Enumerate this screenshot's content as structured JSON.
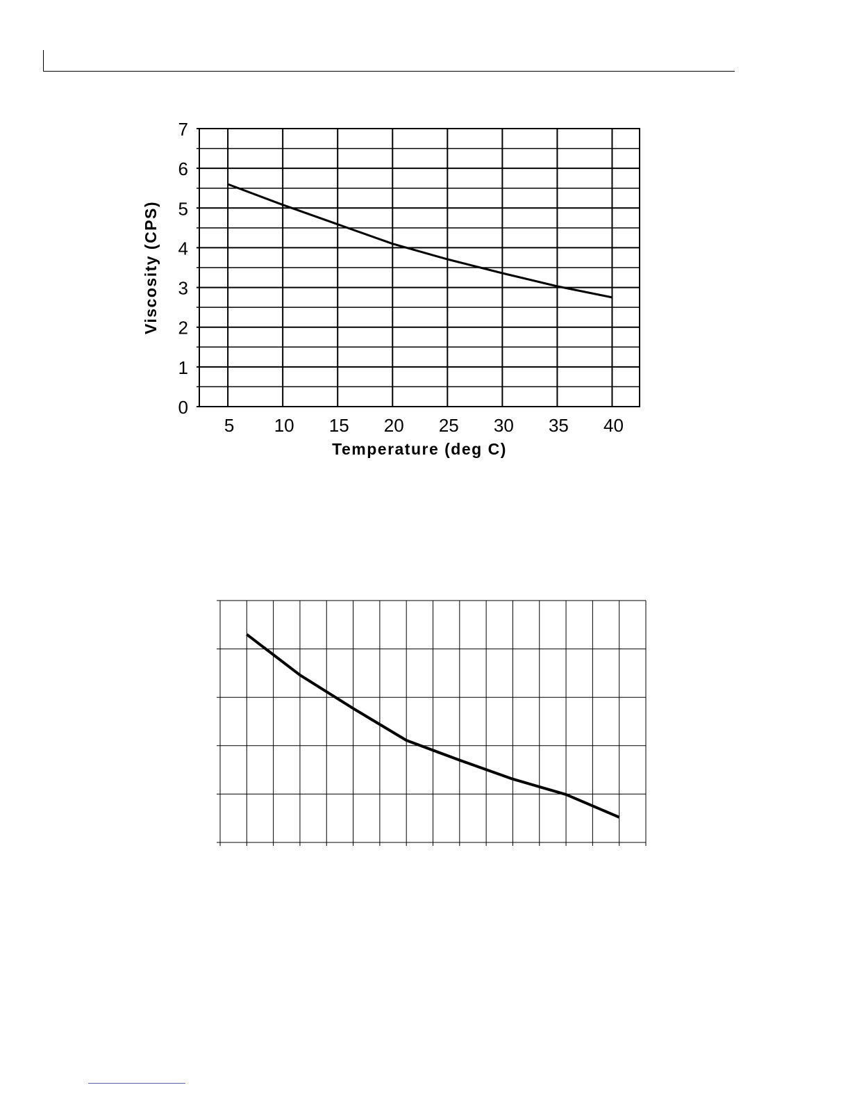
{
  "chart_data": [
    {
      "type": "line",
      "title": "",
      "xlabel": "Temperature (deg C)",
      "ylabel": "Viscosity (CPS)",
      "x": [
        5,
        10,
        15,
        20,
        25,
        30,
        35,
        40
      ],
      "series": [
        {
          "name": "Viscosity",
          "values": [
            5.6,
            5.08,
            4.59,
            4.1,
            3.71,
            3.36,
            3.03,
            2.75
          ]
        }
      ],
      "xticks": [
        5,
        10,
        15,
        20,
        25,
        30,
        35,
        40
      ],
      "yticks": [
        0,
        1,
        2,
        3,
        4,
        5,
        6,
        7
      ],
      "xlim": [
        2.4,
        42.5
      ],
      "ylim": [
        0,
        7
      ],
      "grid": true
    },
    {
      "type": "line",
      "title": "",
      "xlabel": "",
      "ylabel": "",
      "x": [
        5,
        10,
        15,
        20,
        25,
        30,
        35,
        40
      ],
      "series": [
        {
          "name": "",
          "values": [
            4.3,
            3.46,
            2.77,
            2.11,
            1.7,
            1.31,
            0.99,
            0.52
          ]
        }
      ],
      "xlim": [
        2.5,
        42.5
      ],
      "ylim": [
        0,
        5
      ],
      "grid": true
    }
  ]
}
